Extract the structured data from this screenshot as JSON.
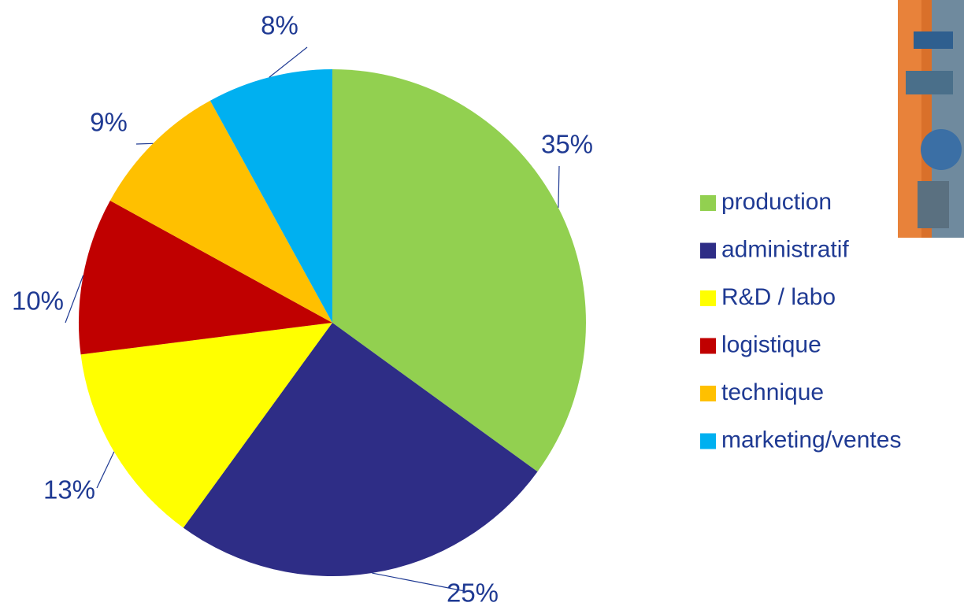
{
  "chart_data": {
    "type": "pie",
    "categories": [
      "production",
      "administratif",
      "R&D / labo",
      "logistique",
      "technique",
      "marketing/ventes"
    ],
    "values": [
      35,
      25,
      13,
      10,
      9,
      8
    ],
    "value_labels": [
      "35%",
      "25%",
      "13%",
      "10%",
      "9%",
      "8%"
    ],
    "colors": [
      "#92d050",
      "#2e2d86",
      "#ffff00",
      "#c00000",
      "#ffc000",
      "#00b0f0"
    ],
    "legend": "right"
  }
}
